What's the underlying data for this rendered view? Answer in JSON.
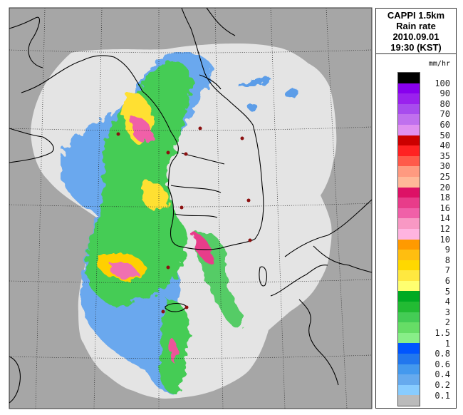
{
  "title": {
    "line1": "CAPPI 1.5km",
    "line2": "Rain rate",
    "line3": "2010.09.01",
    "line4": "19:30 (KST)"
  },
  "legend": {
    "unit": "mm/hr",
    "labels": [
      "100",
      "90",
      "80",
      "70",
      "60",
      "50",
      "40",
      "35",
      "30",
      "25",
      "20",
      "18",
      "16",
      "14",
      "12",
      "10",
      "9",
      "8",
      "7",
      "6",
      "5",
      "4",
      "3",
      "2",
      "1.5",
      "1",
      "0.8",
      "0.6",
      "0.4",
      "0.2",
      "0.1"
    ],
    "colors": [
      "#000000",
      "#8800ee",
      "#9a22ee",
      "#a84cee",
      "#c070ee",
      "#e090f0",
      "#cc0000",
      "#ff2222",
      "#ff5a4a",
      "#ff9a80",
      "#ffb898",
      "#dd1166",
      "#e83c8a",
      "#f060a8",
      "#f898c4",
      "#ffb4e0",
      "#ff9a00",
      "#ffbe10",
      "#ffd800",
      "#ffe840",
      "#ffff70",
      "#00aa22",
      "#22bb33",
      "#44cc55",
      "#66dd66",
      "#88ee88",
      "#0055ff",
      "#2277ee",
      "#4499ee",
      "#66aaee",
      "#88ccff",
      "#bbbbbb"
    ]
  },
  "map": {
    "background_color": "#a6a6a6",
    "coverage_color": "#e4e4e4"
  }
}
